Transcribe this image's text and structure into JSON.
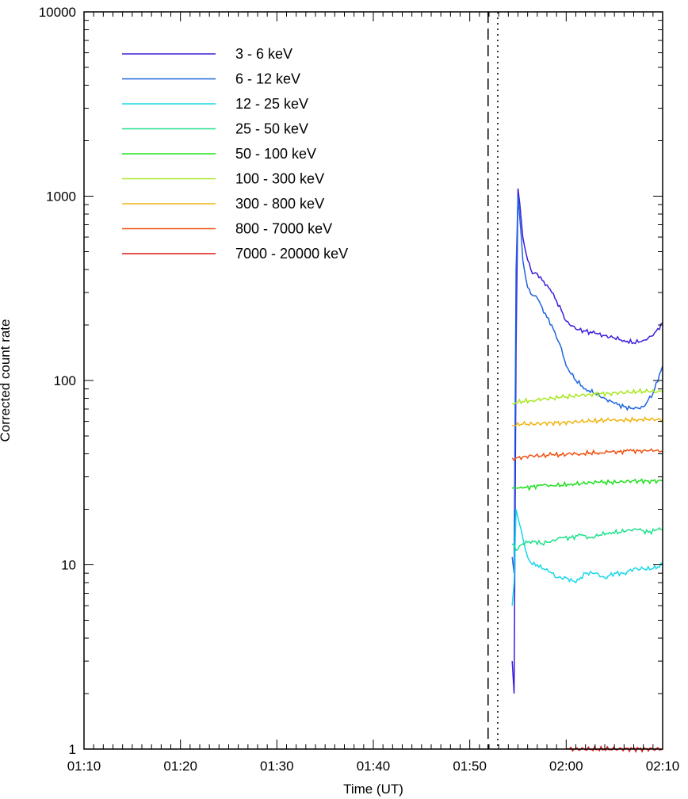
{
  "chart_data": {
    "type": "line",
    "xlabel": "Time (UT)",
    "ylabel": "Corrected count rate",
    "x_scale": "time",
    "y_scale": "log",
    "xlim": [
      "01:10",
      "02:10"
    ],
    "ylim": [
      1,
      10000
    ],
    "x_tick_labels": [
      "01:10",
      "01:20",
      "01:30",
      "01:40",
      "01:50",
      "02:00",
      "02:10"
    ],
    "y_tick_labels": [
      "1",
      "10",
      "100",
      "1000",
      "10000"
    ],
    "grid": false,
    "legend_position": "top-left",
    "vertical_markers": [
      {
        "time": "01:51:54",
        "style": "dashed"
      },
      {
        "time": "01:52:54",
        "style": "dotted"
      }
    ],
    "series": [
      {
        "name": "3 - 6 keV",
        "color": "#3c1cdc",
        "x": [
          "01:54:24",
          "01:54:36",
          "01:54:48",
          "01:55:00",
          "01:55:12",
          "01:55:30",
          "01:56:00",
          "01:56:30",
          "01:57:00",
          "01:57:30",
          "01:58:00",
          "01:58:30",
          "01:59:00",
          "01:59:30",
          "02:00:00",
          "02:01:00",
          "02:02:00",
          "02:03:00",
          "02:04:00",
          "02:05:00",
          "02:06:00",
          "02:07:00",
          "02:08:00",
          "02:09:00",
          "02:10:00"
        ],
        "y": [
          3.0,
          2.0,
          150,
          1100,
          900,
          600,
          450,
          380,
          380,
          350,
          330,
          300,
          270,
          240,
          210,
          190,
          185,
          180,
          175,
          170,
          165,
          160,
          165,
          175,
          205
        ]
      },
      {
        "name": "6 - 12 keV",
        "color": "#1c64e0",
        "x": [
          "01:54:24",
          "01:54:36",
          "01:54:48",
          "01:55:00",
          "01:55:12",
          "01:55:30",
          "01:56:00",
          "01:56:30",
          "01:57:00",
          "01:57:30",
          "01:58:00",
          "01:58:30",
          "01:59:00",
          "01:59:30",
          "02:00:00",
          "02:01:00",
          "02:02:00",
          "02:03:00",
          "02:04:00",
          "02:05:00",
          "02:06:00",
          "02:07:00",
          "02:08:00",
          "02:09:00",
          "02:10:00"
        ],
        "y": [
          11,
          9,
          400,
          1000,
          750,
          450,
          320,
          290,
          280,
          250,
          220,
          200,
          170,
          150,
          120,
          100,
          90,
          85,
          80,
          75,
          72,
          70,
          72,
          85,
          120
        ]
      },
      {
        "name": "12 - 25 keV",
        "color": "#18d8e8",
        "x": [
          "01:54:24",
          "01:54:36",
          "01:54:48",
          "01:55:00",
          "01:55:30",
          "01:56:00",
          "01:56:30",
          "01:57:00",
          "01:57:30",
          "01:58:00",
          "01:58:30",
          "01:59:00",
          "02:00:00",
          "02:01:00",
          "02:02:00",
          "02:03:00",
          "02:04:00",
          "02:05:00",
          "02:06:00",
          "02:07:00",
          "02:08:00",
          "02:09:00",
          "02:10:00"
        ],
        "y": [
          6,
          8,
          20,
          18,
          14,
          11,
          10,
          10,
          9.5,
          9.5,
          9,
          8.5,
          8.5,
          8,
          9,
          9,
          8.5,
          9,
          9,
          9.5,
          9.5,
          9.5,
          10
        ]
      },
      {
        "name": "25 - 50 keV",
        "color": "#20e08c",
        "x": [
          "01:54:24",
          "01:54:48",
          "01:55:30",
          "01:56:30",
          "01:57:30",
          "01:58:30",
          "01:59:30",
          "02:00:30",
          "02:01:30",
          "02:02:30",
          "02:03:30",
          "02:04:30",
          "02:05:30",
          "02:06:30",
          "02:07:30",
          "02:08:30",
          "02:09:30",
          "02:10:00"
        ],
        "y": [
          13,
          12,
          13,
          13.5,
          13,
          13.5,
          14,
          14,
          14.5,
          14,
          14.5,
          15,
          15,
          15.5,
          15.5,
          15,
          15.5,
          15.5
        ]
      },
      {
        "name": "50 - 100 keV",
        "color": "#20e020",
        "x": [
          "01:54:24",
          "01:54:48",
          "01:55:30",
          "01:56:30",
          "01:57:30",
          "01:58:30",
          "01:59:30",
          "02:00:30",
          "02:01:30",
          "02:02:30",
          "02:03:30",
          "02:04:30",
          "02:05:30",
          "02:06:30",
          "02:07:30",
          "02:08:30",
          "02:09:30",
          "02:10:00"
        ],
        "y": [
          26,
          26,
          26,
          26.5,
          27,
          27,
          27,
          27.5,
          27.5,
          28,
          28,
          28,
          28,
          28.5,
          28.5,
          28.5,
          28.5,
          28.5
        ]
      },
      {
        "name": "100 - 300 keV",
        "color": "#a8e820",
        "x": [
          "01:54:24",
          "01:54:48",
          "01:55:30",
          "01:56:30",
          "01:57:30",
          "01:58:30",
          "01:59:30",
          "02:00:30",
          "02:01:30",
          "02:02:30",
          "02:03:30",
          "02:04:30",
          "02:05:30",
          "02:06:30",
          "02:07:30",
          "02:08:30",
          "02:09:30",
          "02:10:00"
        ],
        "y": [
          75,
          76,
          77,
          78,
          79,
          80,
          81,
          82,
          83,
          84,
          85,
          85,
          86,
          86,
          87,
          87,
          87,
          88
        ]
      },
      {
        "name": "300 - 800 keV",
        "color": "#f0b410",
        "x": [
          "01:54:24",
          "01:54:48",
          "01:55:30",
          "01:56:30",
          "01:57:30",
          "01:58:30",
          "01:59:30",
          "02:00:30",
          "02:01:30",
          "02:02:30",
          "02:03:30",
          "02:04:30",
          "02:05:30",
          "02:06:30",
          "02:07:30",
          "02:08:30",
          "02:09:30",
          "02:10:00"
        ],
        "y": [
          57,
          57,
          58,
          58,
          58.5,
          59,
          59,
          59.5,
          60,
          60,
          60.5,
          61,
          61,
          61,
          61.5,
          61.5,
          61.5,
          61.5
        ]
      },
      {
        "name": "800 - 7000 keV",
        "color": "#f05010",
        "x": [
          "01:54:24",
          "01:54:48",
          "01:55:30",
          "01:56:30",
          "01:57:30",
          "01:58:30",
          "01:59:30",
          "02:00:30",
          "02:01:30",
          "02:02:30",
          "02:03:30",
          "02:04:30",
          "02:05:30",
          "02:06:30",
          "02:07:30",
          "02:08:30",
          "02:09:30",
          "02:10:00"
        ],
        "y": [
          38,
          38,
          38.5,
          39,
          39,
          39.5,
          39.5,
          40,
          40,
          40.5,
          40.5,
          41,
          41,
          41.5,
          41.5,
          41.5,
          42,
          41
        ]
      },
      {
        "name": "7000 - 20000 keV",
        "color": "#e01818",
        "x": [
          "02:00:00",
          "02:10:00"
        ],
        "y": [
          1,
          1
        ]
      }
    ]
  }
}
